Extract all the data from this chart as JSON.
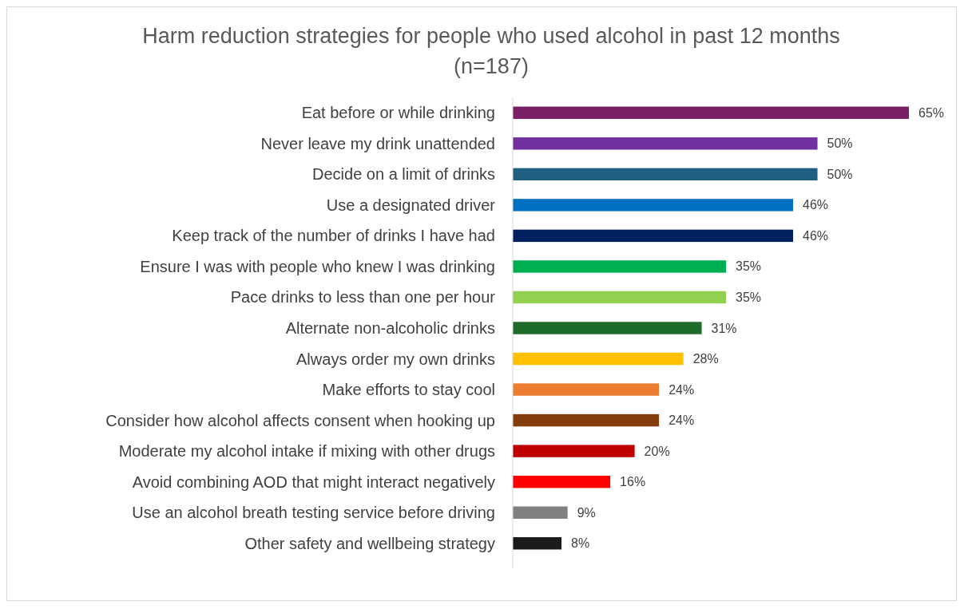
{
  "chart_data": {
    "type": "bar",
    "orientation": "horizontal",
    "title": "Harm reduction strategies for people who used alcohol in past 12 months\n(n=187)",
    "categories": [
      "Eat before or while drinking",
      "Never leave my drink unattended",
      "Decide on a limit of drinks",
      "Use a designated driver",
      "Keep track of the number of drinks I have had",
      "Ensure I was with people who knew I was drinking",
      "Pace drinks to less than one per hour",
      "Alternate non-alcoholic drinks",
      "Always order my own drinks",
      "Make efforts to stay cool",
      "Consider how alcohol affects consent when hooking up",
      "Moderate my alcohol intake if mixing with other drugs",
      "Avoid combining AOD that might interact negatively",
      "Use an alcohol breath testing service before driving",
      "Other safety and wellbeing strategy"
    ],
    "values": [
      65,
      50,
      50,
      46,
      46,
      35,
      35,
      31,
      28,
      24,
      24,
      20,
      16,
      9,
      8
    ],
    "value_labels": [
      "65%",
      "50%",
      "50%",
      "46%",
      "46%",
      "35%",
      "35%",
      "31%",
      "28%",
      "24%",
      "24%",
      "20%",
      "16%",
      "9%",
      "8%"
    ],
    "colors": [
      "#7b1f66",
      "#7030a0",
      "#1f6080",
      "#0070c0",
      "#002060",
      "#00b050",
      "#92d050",
      "#1e6b2a",
      "#ffc000",
      "#ed7d31",
      "#843c0c",
      "#c00000",
      "#ff0000",
      "#808080",
      "#1a1a1a"
    ],
    "data_labels": false
  }
}
